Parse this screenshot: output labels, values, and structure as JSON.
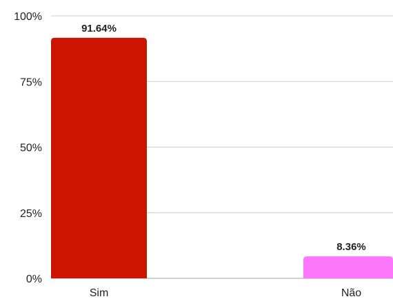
{
  "chart_data": {
    "type": "bar",
    "categories": [
      "Sim",
      "Não"
    ],
    "values": [
      91.64,
      8.36
    ],
    "data_labels": [
      "91.64%",
      "8.36%"
    ],
    "colors": [
      "#cc1500",
      "#fc77fc"
    ],
    "ylim": [
      0,
      100
    ],
    "y_ticks": [
      0,
      25,
      50,
      75,
      100
    ],
    "y_tick_labels": [
      "0%",
      "25%",
      "50%",
      "75%",
      "100%"
    ],
    "grid": true,
    "title": "",
    "xlabel": "",
    "ylabel": ""
  }
}
